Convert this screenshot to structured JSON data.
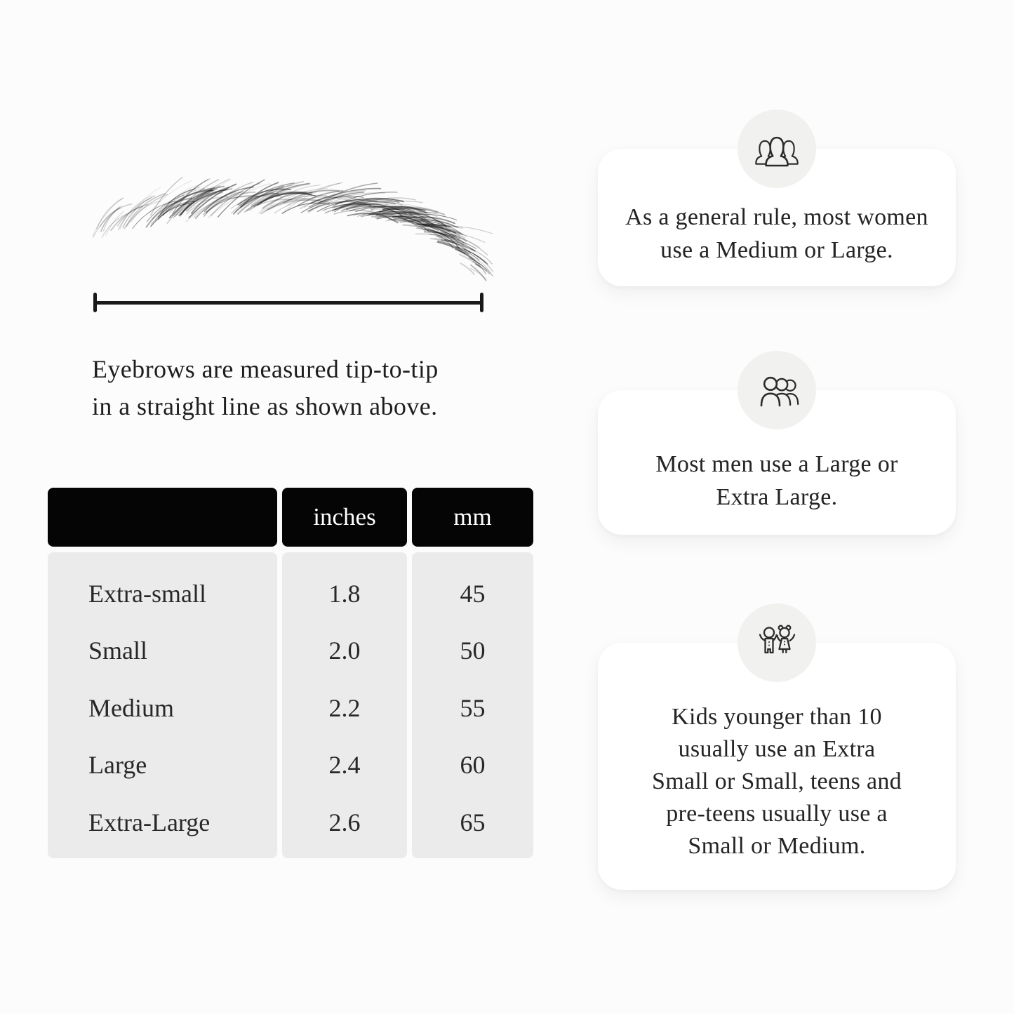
{
  "page": {
    "background": "#fcfcfc"
  },
  "eyebrow_section": {
    "illustration": "eyebrow-sketch",
    "caption_lines": [
      "Eyebrows are measured tip-to-tip",
      "in a straight line as shown above."
    ]
  },
  "size_table": {
    "column_headers": [
      "",
      "inches",
      "mm"
    ],
    "rows": [
      {
        "size": "Extra-small",
        "inches": "1.8",
        "mm": "45"
      },
      {
        "size": "Small",
        "inches": "2.0",
        "mm": "50"
      },
      {
        "size": "Medium",
        "inches": "2.2",
        "mm": "55"
      },
      {
        "size": "Large",
        "inches": "2.4",
        "mm": "60"
      },
      {
        "size": "Extra-Large",
        "inches": "2.6",
        "mm": "65"
      }
    ],
    "colors": {
      "header_bg": "#050505",
      "header_text": "#ffffff",
      "body_bg": "#ebebeb"
    }
  },
  "info_cards": [
    {
      "icon": "women-group-icon",
      "lines": [
        "As a general rule, most women",
        "use a Medium or Large."
      ]
    },
    {
      "icon": "men-group-icon",
      "lines": [
        "Most men use a Large or",
        "Extra Large."
      ]
    },
    {
      "icon": "children-icon",
      "lines": [
        "Kids younger than 10",
        "usually use an Extra",
        "Small or Small, teens and",
        "pre-teens usually use a",
        "Small or Medium."
      ]
    }
  ],
  "colors": {
    "card_bg": "#ffffff",
    "icon_circle_bg": "#f1f1ef",
    "measure_line": "#191919",
    "text": "#212121"
  }
}
